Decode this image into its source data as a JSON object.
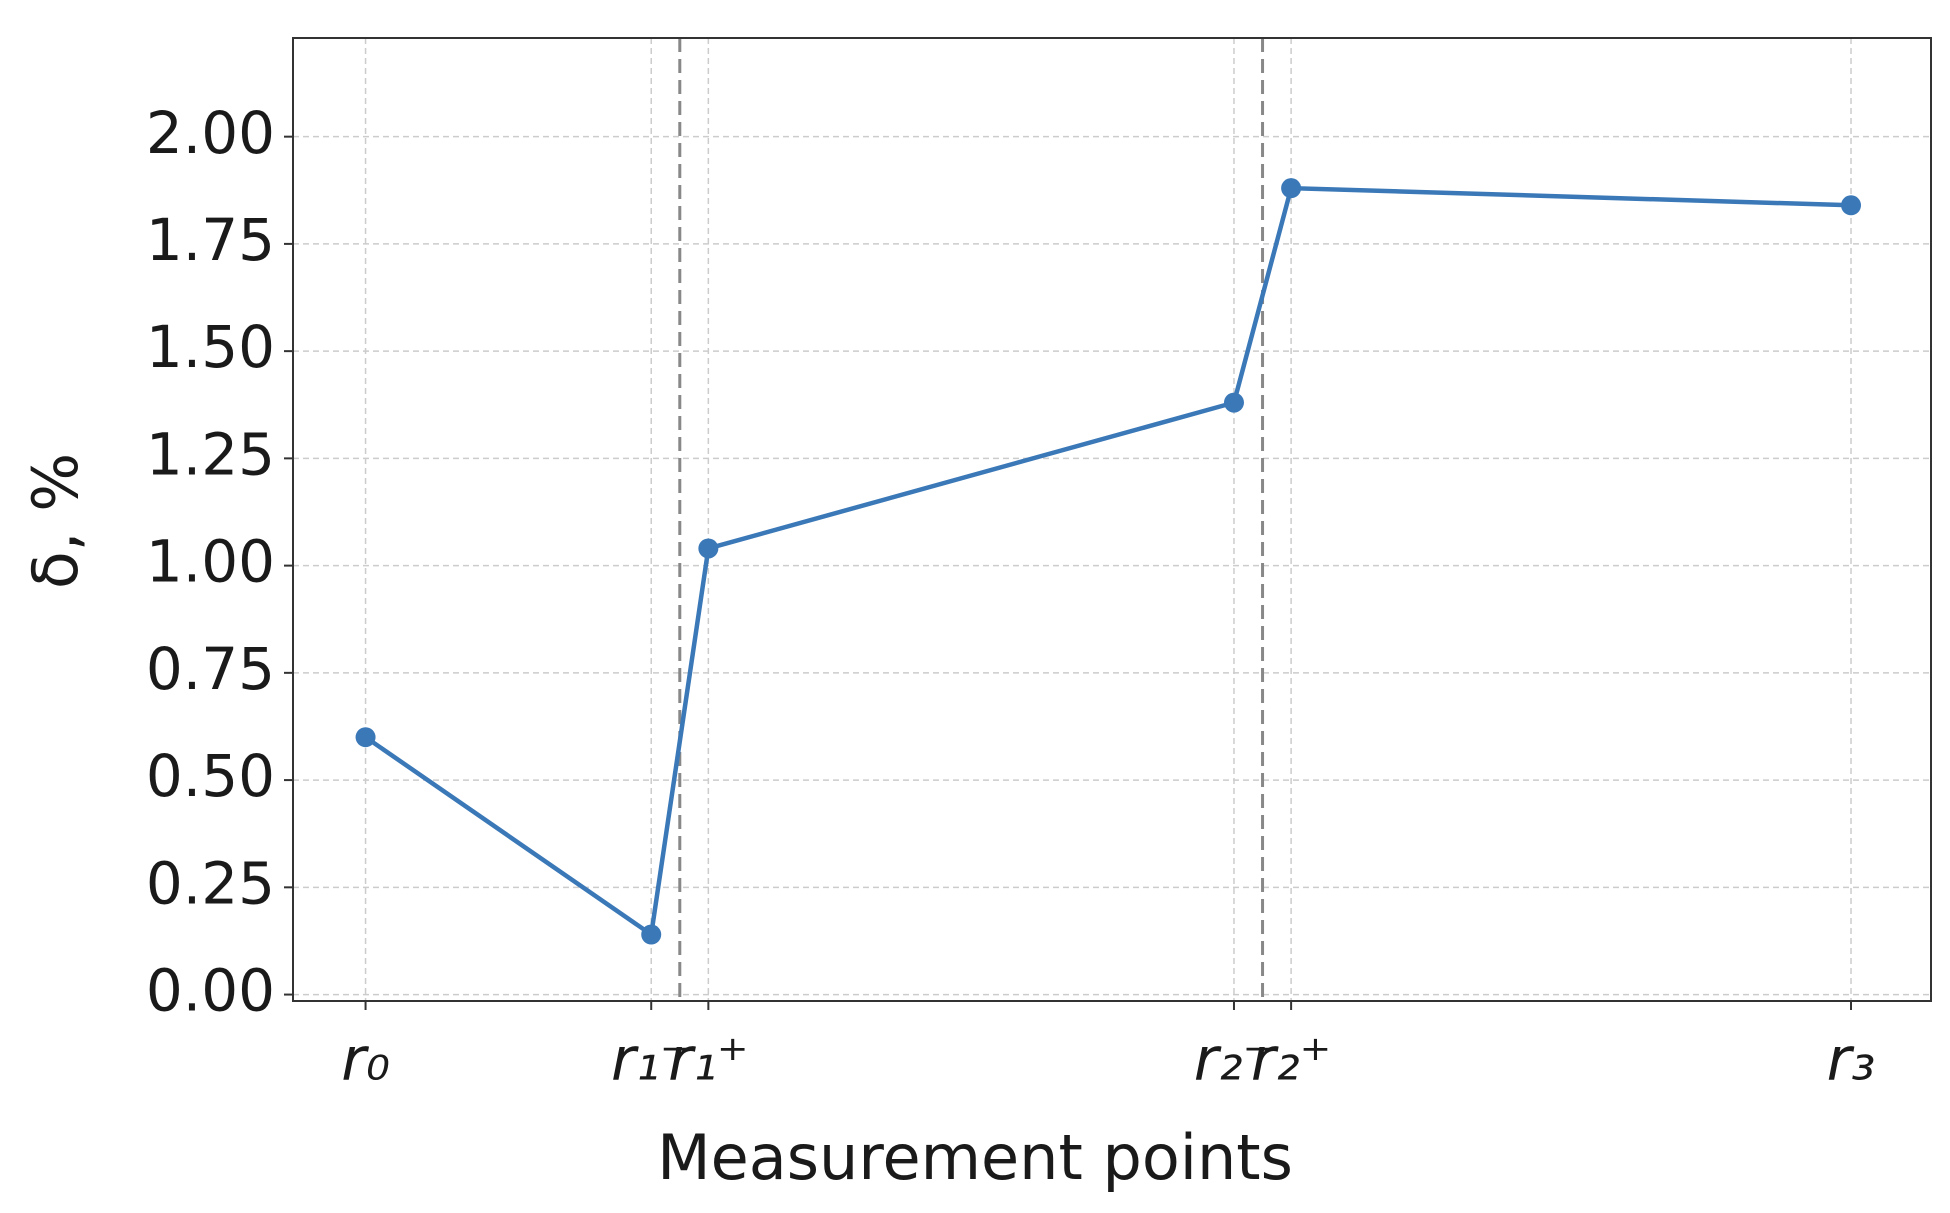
{
  "chart_data": {
    "type": "line",
    "x_label": "Measurement points",
    "y_label": "δ, %",
    "x": [
      0,
      0.5,
      0.6,
      1.52,
      1.62,
      2.6
    ],
    "series": [
      {
        "color": "#3a78b8",
        "values": [
          0.6,
          0.14,
          1.04,
          1.38,
          1.88,
          1.84
        ]
      }
    ],
    "xlim": [
      -0.127,
      2.74
    ],
    "xticks": [
      {
        "value": 0,
        "label": "r₀"
      },
      {
        "value": 0.5,
        "label": "r₁⁻"
      },
      {
        "value": 0.6,
        "label": "r₁⁺"
      },
      {
        "value": 1.52,
        "label": "r₂⁻"
      },
      {
        "value": 1.62,
        "label": "r₂⁺"
      },
      {
        "value": 2.6,
        "label": "r₃"
      }
    ],
    "ylim": [
      -0.015,
      2.23
    ],
    "yticks": [
      {
        "value": 0,
        "label": "0.00"
      },
      {
        "value": 0.25,
        "label": "0.25"
      },
      {
        "value": 0.5,
        "label": "0.50"
      },
      {
        "value": 0.75,
        "label": "0.75"
      },
      {
        "value": 1,
        "label": "1.00"
      },
      {
        "value": 1.25,
        "label": "1.25"
      },
      {
        "value": 1.5,
        "label": "1.50"
      },
      {
        "value": 1.75,
        "label": "1.75"
      },
      {
        "value": 2,
        "label": "2.00"
      }
    ],
    "vlines": [
      0.55,
      1.57
    ],
    "grid": true
  }
}
